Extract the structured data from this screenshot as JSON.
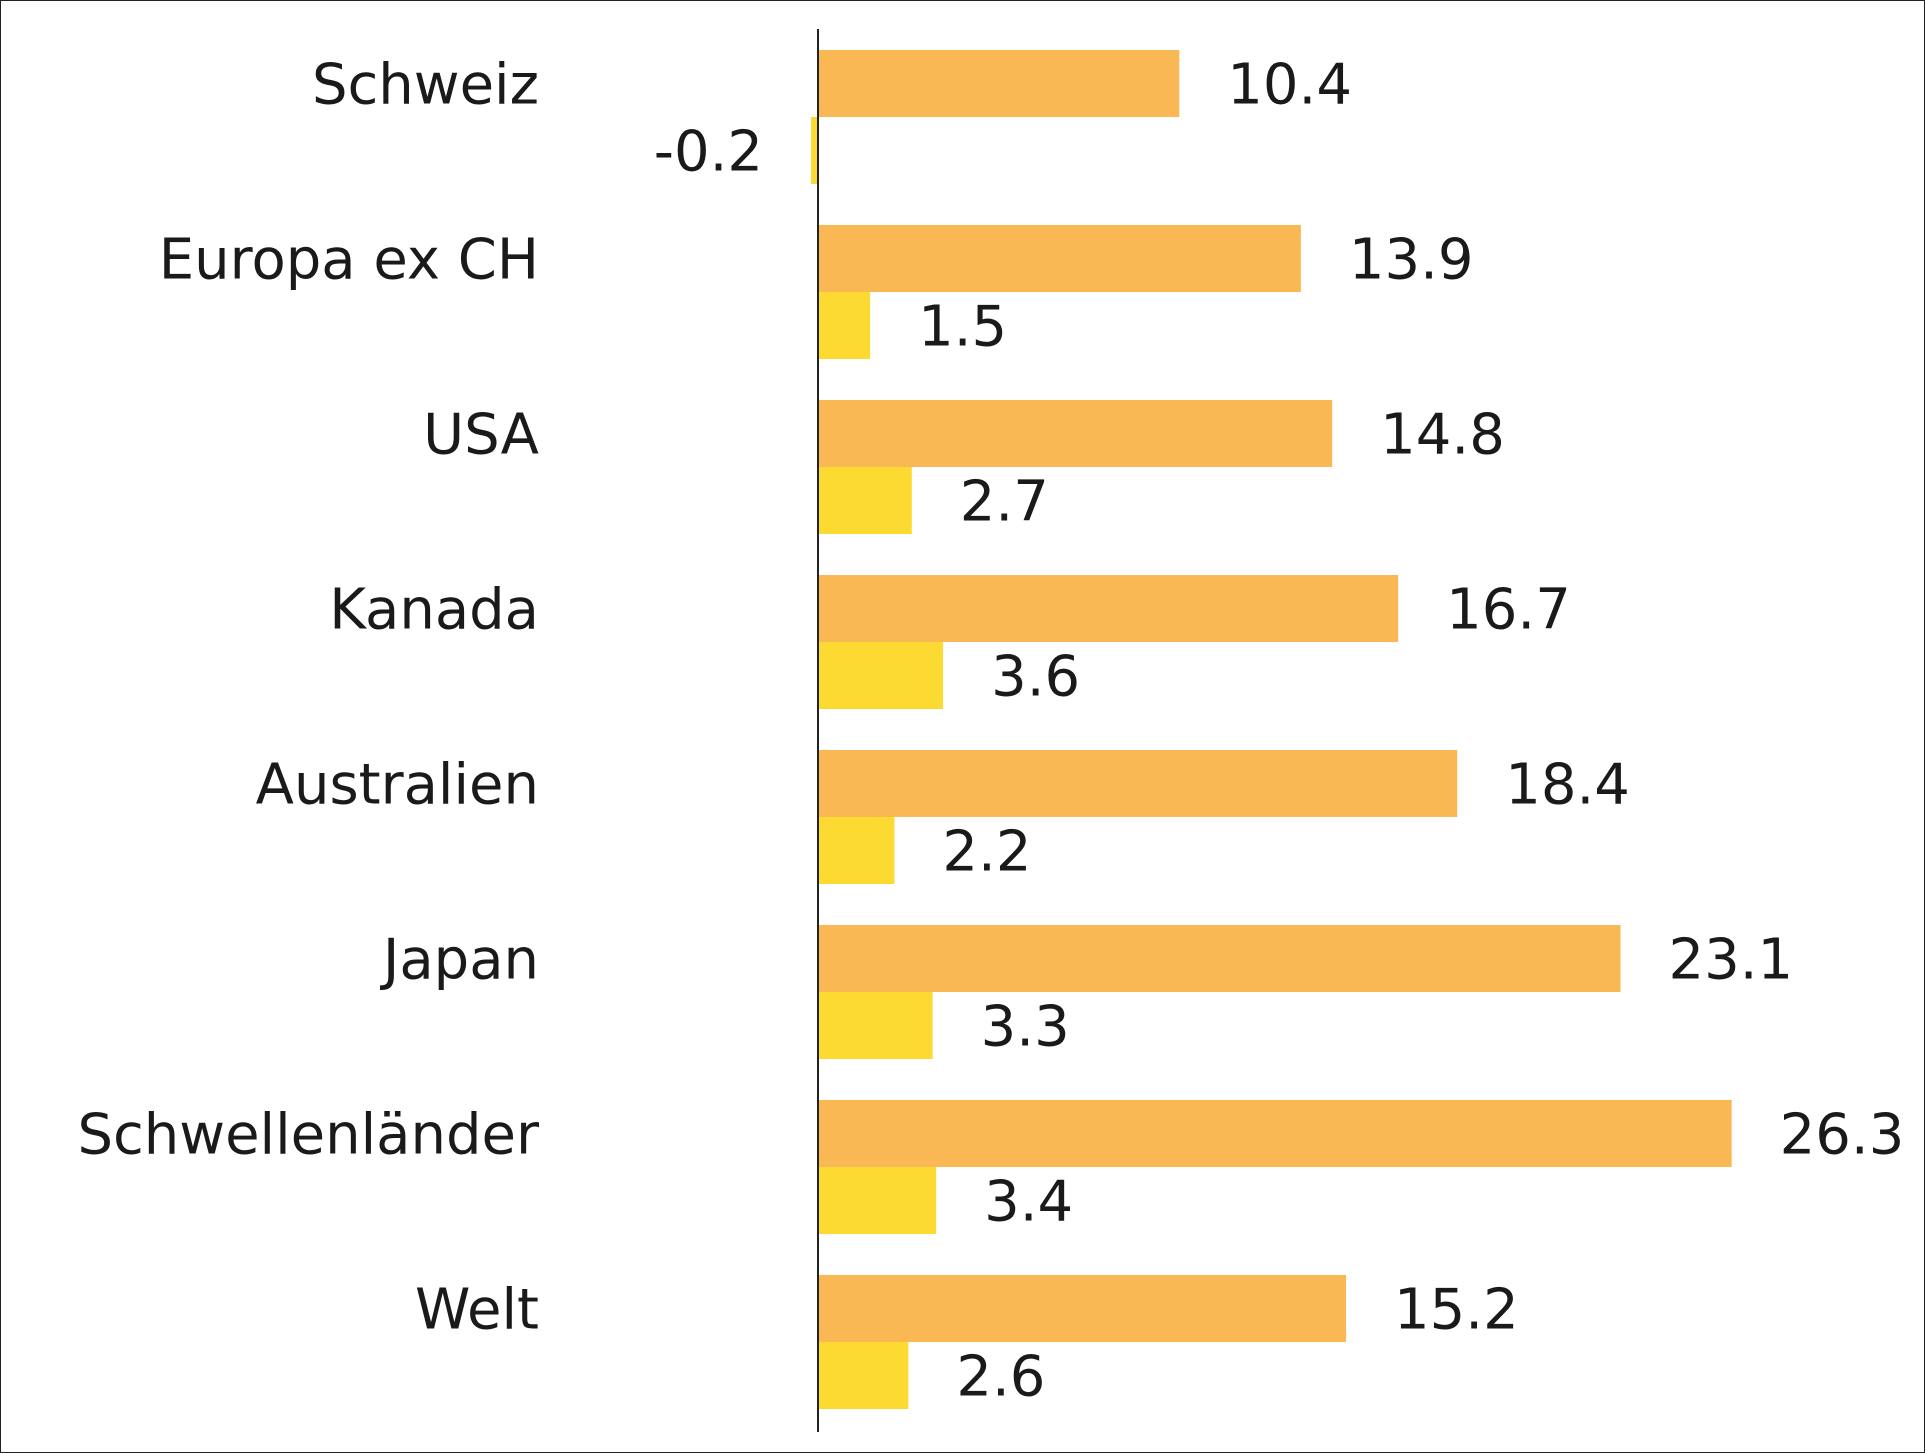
{
  "colors": {
    "series_a": "#F9B853",
    "series_b": "#FDDA31",
    "axis": "#222222",
    "text": "#1a1a1a"
  },
  "chart_data": {
    "type": "bar",
    "orientation": "horizontal",
    "categories": [
      "Schweiz",
      "Europa ex CH",
      "USA",
      "Kanada",
      "Australien",
      "Japan",
      "Schwellenländer",
      "Welt"
    ],
    "series": [
      {
        "color": "#F9B853",
        "values": [
          10.4,
          13.9,
          14.8,
          16.7,
          18.4,
          23.1,
          26.3,
          15.2
        ],
        "labels": [
          "10.4",
          "13.9",
          "14.8",
          "16.7",
          "18.4",
          "23.1",
          "26.3",
          "15.2"
        ]
      },
      {
        "color": "#FDDA31",
        "values": [
          -0.2,
          1.5,
          2.7,
          3.6,
          2.2,
          3.3,
          3.4,
          2.6
        ],
        "labels": [
          "-0.2",
          "1.5",
          "2.7",
          "3.6",
          "2.2",
          "3.3",
          "3.4",
          "2.6"
        ]
      }
    ],
    "xlim": [
      -0.5,
      30
    ],
    "grid": false,
    "legend": "none",
    "title": "",
    "xlabel": "",
    "ylabel": ""
  }
}
